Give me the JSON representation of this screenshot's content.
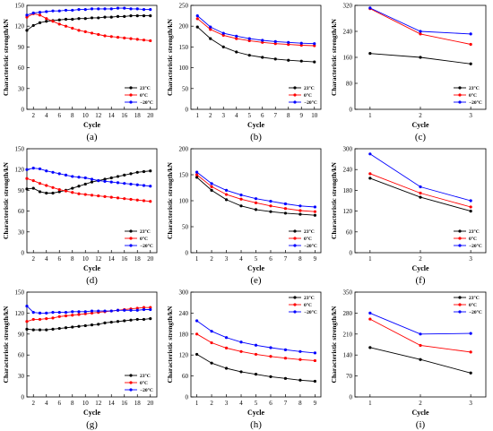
{
  "legend_labels": [
    "23°C",
    "0°C",
    "−20°C"
  ],
  "colors": {
    "23C": "#000000",
    "0C": "#ff0000",
    "m20C": "#0000ff",
    "axis": "#000000"
  },
  "chart_data": [
    {
      "panel": "(a)",
      "type": "line",
      "xlabel": "Cycle",
      "ylabel": "Characteristic strength/kN",
      "xlim": [
        1,
        21
      ],
      "ylim": [
        0,
        150
      ],
      "xticks": [
        2,
        4,
        6,
        8,
        10,
        12,
        14,
        16,
        18,
        20
      ],
      "yticks": [
        0,
        30,
        60,
        90,
        120,
        150
      ],
      "legend": "bottom-right",
      "x": [
        1,
        2,
        3,
        4,
        5,
        6,
        7,
        8,
        9,
        10,
        11,
        12,
        13,
        14,
        15,
        16,
        17,
        18,
        19,
        20
      ],
      "series": [
        {
          "name": "23°C",
          "color": "#000000",
          "values": [
            114,
            121,
            125,
            127,
            128,
            129,
            130,
            130,
            131,
            131,
            132,
            132,
            133,
            133,
            134,
            134,
            135,
            135,
            135,
            135
          ]
        },
        {
          "name": "0°C",
          "color": "#ff0000",
          "values": [
            133,
            138,
            136,
            131,
            127,
            123,
            120,
            117,
            114,
            112,
            110,
            108,
            106,
            105,
            104,
            103,
            102,
            101,
            100,
            99
          ]
        },
        {
          "name": "−20°C",
          "color": "#0000ff",
          "values": [
            136,
            139,
            140,
            141,
            142,
            142,
            143,
            143,
            144,
            144,
            145,
            145,
            145,
            145,
            146,
            146,
            145,
            145,
            144,
            144
          ]
        }
      ]
    },
    {
      "panel": "(b)",
      "type": "line",
      "xlabel": "Cycle",
      "ylabel": "Characteristic strength/kN",
      "xlim": [
        0.5,
        10.5
      ],
      "ylim": [
        0,
        250
      ],
      "xticks": [
        1,
        2,
        3,
        4,
        5,
        6,
        7,
        8,
        9,
        10
      ],
      "yticks": [
        0,
        50,
        100,
        150,
        200,
        250
      ],
      "legend": "bottom-right",
      "x": [
        1,
        2,
        3,
        4,
        5,
        6,
        7,
        8,
        9,
        10
      ],
      "series": [
        {
          "name": "23°C",
          "color": "#000000",
          "values": [
            198,
            170,
            150,
            138,
            130,
            125,
            121,
            118,
            116,
            114
          ]
        },
        {
          "name": "0°C",
          "color": "#ff0000",
          "values": [
            218,
            192,
            178,
            170,
            165,
            161,
            158,
            156,
            154,
            153
          ]
        },
        {
          "name": "−20°C",
          "color": "#0000ff",
          "values": [
            225,
            198,
            183,
            176,
            170,
            166,
            163,
            161,
            159,
            158
          ]
        }
      ]
    },
    {
      "panel": "(c)",
      "type": "line",
      "xlabel": "Cycle",
      "ylabel": "Characteristic strength/kN",
      "xlim": [
        0.7,
        3.3
      ],
      "ylim": [
        0,
        320
      ],
      "xticks": [
        1,
        2,
        3
      ],
      "yticks": [
        0,
        80,
        160,
        240,
        320
      ],
      "legend": "bottom-right",
      "x": [
        1,
        2,
        3
      ],
      "series": [
        {
          "name": "23°C",
          "color": "#000000",
          "values": [
            172,
            160,
            140
          ]
        },
        {
          "name": "0°C",
          "color": "#ff0000",
          "values": [
            310,
            232,
            200
          ]
        },
        {
          "name": "−20°C",
          "color": "#0000ff",
          "values": [
            312,
            240,
            232
          ]
        }
      ]
    },
    {
      "panel": "(d)",
      "type": "line",
      "xlabel": "Cycle",
      "ylabel": "Characteristic strength/kN",
      "xlim": [
        1,
        21
      ],
      "ylim": [
        0,
        150
      ],
      "xticks": [
        2,
        4,
        6,
        8,
        10,
        12,
        14,
        16,
        18,
        20
      ],
      "yticks": [
        0,
        30,
        60,
        90,
        120,
        150
      ],
      "legend": "bottom-right",
      "x": [
        1,
        2,
        3,
        4,
        5,
        6,
        7,
        8,
        9,
        10,
        11,
        12,
        13,
        14,
        15,
        16,
        17,
        18,
        19,
        20
      ],
      "series": [
        {
          "name": "23°C",
          "color": "#000000",
          "values": [
            92,
            93,
            88,
            86,
            86,
            88,
            90,
            93,
            96,
            99,
            102,
            104,
            106,
            108,
            110,
            112,
            114,
            116,
            117,
            118
          ]
        },
        {
          "name": "0°C",
          "color": "#ff0000",
          "values": [
            107,
            104,
            100,
            97,
            94,
            91,
            89,
            87,
            85,
            84,
            83,
            82,
            81,
            80,
            79,
            78,
            77,
            76,
            75,
            74
          ]
        },
        {
          "name": "−20°C",
          "color": "#0000ff",
          "values": [
            120,
            122,
            121,
            118,
            116,
            114,
            112,
            110,
            109,
            108,
            106,
            104,
            103,
            102,
            101,
            100,
            99,
            98,
            97,
            96
          ]
        }
      ]
    },
    {
      "panel": "(e)",
      "type": "line",
      "xlabel": "Cycle",
      "ylabel": "Characteristic strength/kN",
      "xlim": [
        0.6,
        9.4
      ],
      "ylim": [
        0,
        200
      ],
      "xticks": [
        1,
        2,
        3,
        4,
        5,
        6,
        7,
        8,
        9
      ],
      "yticks": [
        0,
        50,
        100,
        150,
        200
      ],
      "legend": "bottom-right",
      "x": [
        1,
        2,
        3,
        4,
        5,
        6,
        7,
        8,
        9
      ],
      "series": [
        {
          "name": "23°C",
          "color": "#000000",
          "values": [
            145,
            120,
            102,
            90,
            83,
            79,
            76,
            74,
            72
          ]
        },
        {
          "name": "0°C",
          "color": "#ff0000",
          "values": [
            150,
            127,
            112,
            103,
            96,
            90,
            85,
            81,
            79
          ]
        },
        {
          "name": "−20°C",
          "color": "#0000ff",
          "values": [
            155,
            133,
            120,
            111,
            104,
            99,
            94,
            90,
            88
          ]
        }
      ]
    },
    {
      "panel": "(f)",
      "type": "line",
      "xlabel": "Cycle",
      "ylabel": "Characteristic strength/kN",
      "xlim": [
        0.7,
        3.3
      ],
      "ylim": [
        0,
        300
      ],
      "xticks": [
        1,
        2,
        3
      ],
      "yticks": [
        0,
        60,
        120,
        180,
        240,
        300
      ],
      "legend": "bottom-right",
      "x": [
        1,
        2,
        3
      ],
      "series": [
        {
          "name": "23°C",
          "color": "#000000",
          "values": [
            215,
            160,
            120
          ]
        },
        {
          "name": "0°C",
          "color": "#ff0000",
          "values": [
            228,
            172,
            132
          ]
        },
        {
          "name": "−20°C",
          "color": "#0000ff",
          "values": [
            285,
            190,
            150
          ]
        }
      ]
    },
    {
      "panel": "(g)",
      "type": "line",
      "xlabel": "Cycle",
      "ylabel": "Characteristic strength/kN",
      "xlim": [
        1,
        21
      ],
      "ylim": [
        0,
        150
      ],
      "xticks": [
        2,
        4,
        6,
        8,
        10,
        12,
        14,
        16,
        18,
        20
      ],
      "yticks": [
        0,
        30,
        60,
        90,
        120,
        150
      ],
      "legend": "bottom-right",
      "x": [
        1,
        2,
        3,
        4,
        5,
        6,
        7,
        8,
        9,
        10,
        11,
        12,
        13,
        14,
        15,
        16,
        17,
        18,
        19,
        20
      ],
      "series": [
        {
          "name": "23°C",
          "color": "#000000",
          "values": [
            97,
            96,
            96,
            96,
            97,
            98,
            99,
            100,
            101,
            102,
            103,
            104,
            106,
            107,
            108,
            109,
            110,
            111,
            111,
            112
          ]
        },
        {
          "name": "0°C",
          "color": "#ff0000",
          "values": [
            108,
            111,
            111,
            112,
            113,
            115,
            116,
            117,
            118,
            119,
            120,
            121,
            122,
            123,
            124,
            125,
            126,
            127,
            128,
            128
          ]
        },
        {
          "name": "−20°C",
          "color": "#0000ff",
          "values": [
            130,
            121,
            120,
            120,
            121,
            121,
            121,
            122,
            122,
            122,
            123,
            123,
            123,
            123,
            124,
            124,
            124,
            124,
            125,
            125
          ]
        }
      ]
    },
    {
      "panel": "(h)",
      "type": "line",
      "xlabel": "Cycle",
      "ylabel": "Characteristic strength/kN",
      "xlim": [
        0.6,
        9.4
      ],
      "ylim": [
        0,
        300
      ],
      "xticks": [
        1,
        2,
        3,
        4,
        5,
        6,
        7,
        8,
        9
      ],
      "yticks": [
        0,
        60,
        120,
        180,
        240,
        300
      ],
      "legend": "top-right",
      "x": [
        1,
        2,
        3,
        4,
        5,
        6,
        7,
        8,
        9
      ],
      "series": [
        {
          "name": "23°C",
          "color": "#000000",
          "values": [
            122,
            97,
            82,
            72,
            65,
            58,
            53,
            48,
            45
          ]
        },
        {
          "name": "0°C",
          "color": "#ff0000",
          "values": [
            180,
            155,
            140,
            130,
            122,
            116,
            111,
            107,
            104
          ]
        },
        {
          "name": "−20°C",
          "color": "#0000ff",
          "values": [
            218,
            188,
            170,
            157,
            148,
            141,
            135,
            130,
            126
          ]
        }
      ]
    },
    {
      "panel": "(i)",
      "type": "line",
      "xlabel": "Cycle",
      "ylabel": "Characteristic strength/kN",
      "xlim": [
        0.7,
        3.3
      ],
      "ylim": [
        0,
        350
      ],
      "xticks": [
        1,
        2,
        3
      ],
      "yticks": [
        0,
        70,
        140,
        210,
        280,
        350
      ],
      "legend": "top-right",
      "x": [
        1,
        2,
        3
      ],
      "series": [
        {
          "name": "23°C",
          "color": "#000000",
          "values": [
            165,
            125,
            80
          ]
        },
        {
          "name": "0°C",
          "color": "#ff0000",
          "values": [
            260,
            172,
            150
          ]
        },
        {
          "name": "−20°C",
          "color": "#0000ff",
          "values": [
            280,
            210,
            212
          ]
        }
      ]
    }
  ]
}
